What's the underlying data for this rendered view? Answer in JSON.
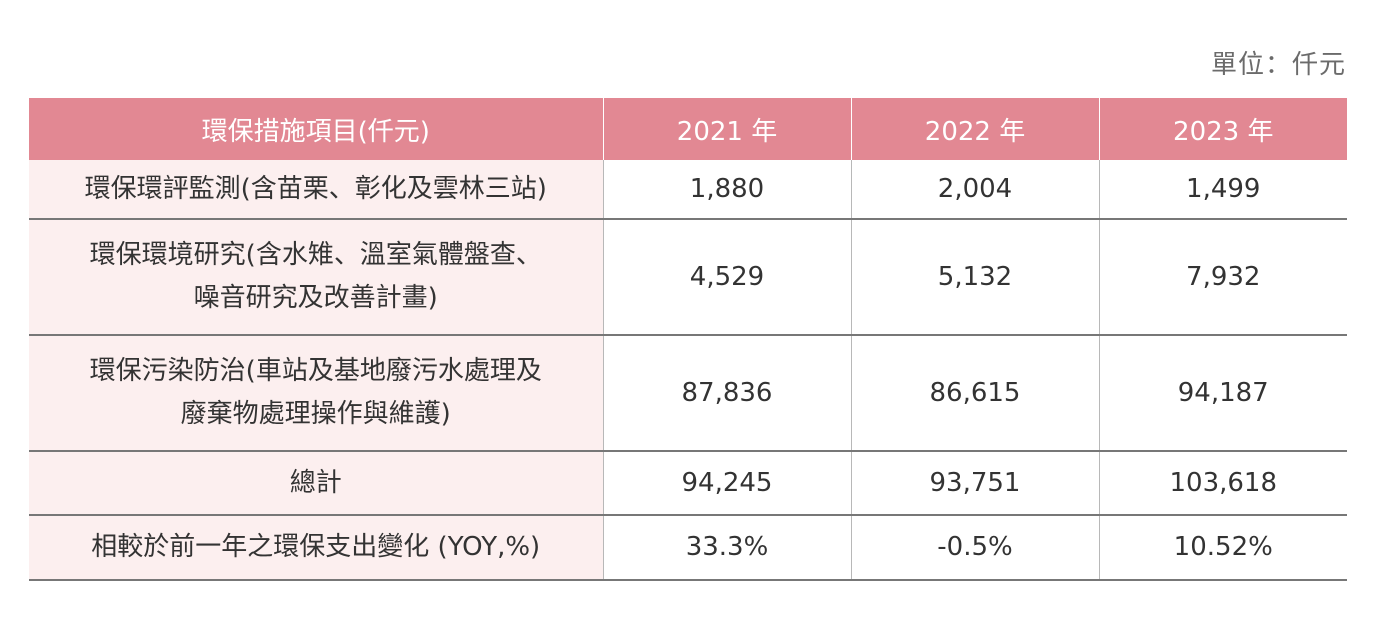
{
  "unit": "單位：仟元",
  "table": {
    "headers": [
      "環保措施項目(仟元)",
      "2021 年",
      "2022 年",
      "2023 年"
    ],
    "rows": [
      {
        "item": "環保環評監測(含苗栗、彰化及雲林三站)",
        "values": [
          "1,880",
          "2,004",
          "1,499"
        ]
      },
      {
        "item_line1": "環保環境研究(含水雉、溫室氣體盤查、",
        "item_line2": "噪音研究及改善計畫)",
        "values": [
          "4,529",
          "5,132",
          "7,932"
        ]
      },
      {
        "item_line1": "環保污染防治(車站及基地廢污水處理及",
        "item_line2": "廢棄物處理操作與維護)",
        "values": [
          "87,836",
          "86,615",
          "94,187"
        ]
      },
      {
        "item": "總計",
        "values": [
          "94,245",
          "93,751",
          "103,618"
        ]
      },
      {
        "item": "相較於前一年之環保支出變化 (YOY,%)",
        "values": [
          "33.3%",
          "-0.5%",
          "10.52%"
        ]
      }
    ]
  }
}
